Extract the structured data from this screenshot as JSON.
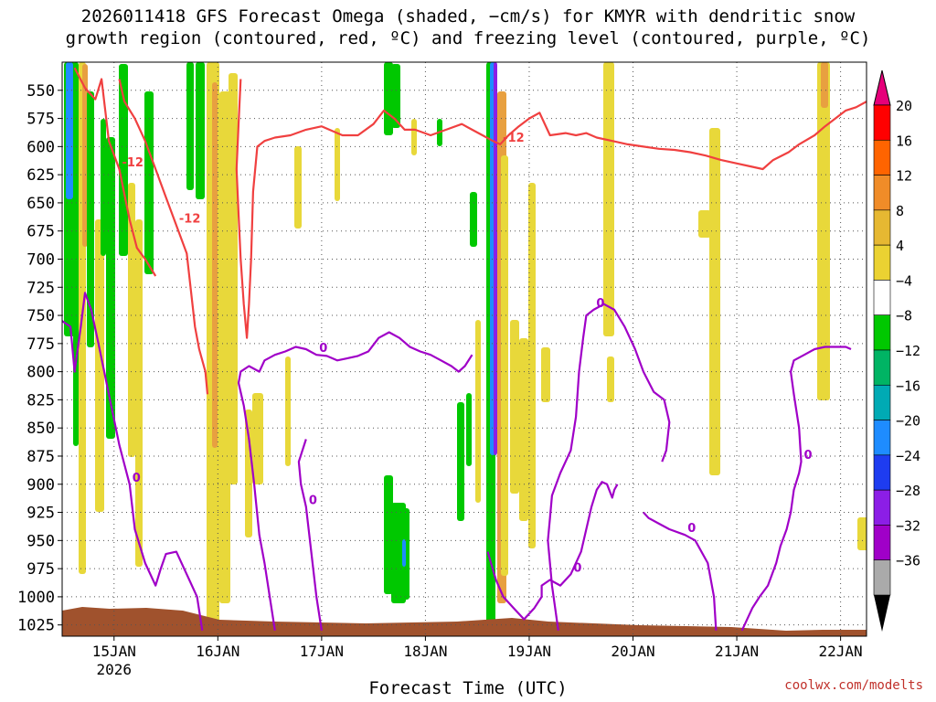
{
  "title": {
    "line1": "2026011418 GFS Forecast Omega (shaded, −cm/s) for KMYR with dendritic snow",
    "line2": "growth region (contoured, red, ºC) and freezing level (contoured, purple, ºC)"
  },
  "credit": "coolwx.com/modelts",
  "chart_data": {
    "type": "heatmap",
    "xlabel": "Forecast Time (UTC)",
    "ylabel": "",
    "x_ticks": [
      "15JAN",
      "16JAN",
      "17JAN",
      "18JAN",
      "19JAN",
      "20JAN",
      "21JAN",
      "22JAN"
    ],
    "x_tick_sub": {
      "15JAN": "2026"
    },
    "x_tick_days": [
      1,
      2,
      3,
      4,
      5,
      6,
      7,
      8
    ],
    "xlim_days": [
      0.5,
      8.25
    ],
    "y_ticks": [
      550,
      575,
      600,
      625,
      650,
      675,
      700,
      725,
      750,
      775,
      800,
      825,
      850,
      875,
      900,
      925,
      950,
      975,
      1000,
      1025
    ],
    "ylim": [
      1035,
      525
    ],
    "grid": true,
    "colorbar": {
      "labels": [
        "20",
        "16",
        "12",
        "8",
        "4",
        "−4",
        "−8",
        "−12",
        "−16",
        "−20",
        "−24",
        "−28",
        "−32",
        "−36"
      ],
      "colors": [
        "#ff0000",
        "#ff6400",
        "#f08c28",
        "#e6b832",
        "#ebd232",
        "#ffffff",
        "#00c800",
        "#00b464",
        "#00aab4",
        "#1e8cff",
        "#1e3cf0",
        "#8c1ee6",
        "#a000c8",
        "#aaaaaa"
      ],
      "top_color": "#e6007a",
      "bottom_color": "#000000"
    },
    "contours": [
      {
        "label": "-12",
        "color": "#f04040",
        "points": [
          [
            0.62,
            530
          ],
          [
            0.72,
            548
          ],
          [
            0.82,
            558
          ],
          [
            0.88,
            540
          ],
          [
            0.95,
            595
          ],
          [
            1.05,
            620
          ],
          [
            1.15,
            665
          ],
          [
            1.22,
            690
          ],
          [
            1.3,
            700
          ],
          [
            1.4,
            715
          ]
        ]
      },
      {
        "label": "-12",
        "color": "#f04040",
        "points": [
          [
            1.05,
            540
          ],
          [
            1.1,
            560
          ],
          [
            1.2,
            575
          ],
          [
            1.3,
            595
          ],
          [
            1.4,
            620
          ],
          [
            1.5,
            645
          ],
          [
            1.6,
            670
          ],
          [
            1.7,
            695
          ],
          [
            1.78,
            760
          ],
          [
            1.82,
            780
          ],
          [
            1.88,
            800
          ],
          [
            1.9,
            820
          ]
        ]
      },
      {
        "label": "-12",
        "color": "#f04040",
        "points": [
          [
            2.22,
            540
          ],
          [
            2.2,
            580
          ],
          [
            2.18,
            620
          ],
          [
            2.2,
            660
          ],
          [
            2.22,
            700
          ],
          [
            2.25,
            740
          ],
          [
            2.28,
            770
          ],
          [
            2.3,
            740
          ],
          [
            2.32,
            700
          ],
          [
            2.34,
            640
          ],
          [
            2.38,
            600
          ],
          [
            2.45,
            595
          ],
          [
            2.55,
            592
          ],
          [
            2.7,
            590
          ],
          [
            2.85,
            585
          ],
          [
            3.0,
            582
          ],
          [
            3.2,
            590
          ],
          [
            3.35,
            590
          ],
          [
            3.5,
            580
          ],
          [
            3.6,
            568
          ],
          [
            3.7,
            575
          ],
          [
            3.8,
            585
          ],
          [
            3.9,
            585
          ],
          [
            4.05,
            590
          ],
          [
            4.2,
            585
          ],
          [
            4.35,
            580
          ],
          [
            4.45,
            585
          ],
          [
            4.55,
            590
          ],
          [
            4.65,
            595
          ],
          [
            4.72,
            598
          ],
          [
            4.8,
            590
          ],
          [
            4.9,
            582
          ],
          [
            5.0,
            575
          ],
          [
            5.1,
            570
          ],
          [
            5.2,
            590
          ],
          [
            5.35,
            588
          ],
          [
            5.45,
            590
          ],
          [
            5.55,
            588
          ],
          [
            5.65,
            592
          ],
          [
            5.8,
            595
          ],
          [
            5.95,
            598
          ],
          [
            6.1,
            600
          ],
          [
            6.25,
            602
          ],
          [
            6.4,
            603
          ],
          [
            6.55,
            605
          ],
          [
            6.7,
            608
          ],
          [
            6.85,
            612
          ],
          [
            7.0,
            615
          ],
          [
            7.15,
            618
          ],
          [
            7.25,
            620
          ],
          [
            7.35,
            612
          ],
          [
            7.5,
            605
          ],
          [
            7.6,
            598
          ],
          [
            7.75,
            590
          ],
          [
            7.85,
            582
          ],
          [
            7.95,
            575
          ],
          [
            8.05,
            568
          ],
          [
            8.15,
            565
          ],
          [
            8.25,
            560
          ]
        ]
      },
      {
        "label": "0",
        "color": "#a000c8",
        "points": [
          [
            0.5,
            755
          ],
          [
            0.58,
            760
          ],
          [
            0.62,
            800
          ],
          [
            0.68,
            760
          ],
          [
            0.72,
            730
          ],
          [
            0.78,
            745
          ],
          [
            0.85,
            775
          ],
          [
            0.95,
            820
          ],
          [
            1.05,
            865
          ],
          [
            1.15,
            900
          ],
          [
            1.2,
            940
          ],
          [
            1.3,
            970
          ],
          [
            1.4,
            990
          ],
          [
            1.45,
            975
          ],
          [
            1.5,
            962
          ],
          [
            1.6,
            960
          ],
          [
            1.7,
            980
          ],
          [
            1.8,
            1000
          ],
          [
            1.85,
            1030
          ]
        ]
      },
      {
        "label": "0",
        "color": "#a000c8",
        "points": [
          [
            2.55,
            1030
          ],
          [
            2.5,
            1000
          ],
          [
            2.45,
            970
          ],
          [
            2.4,
            945
          ],
          [
            2.35,
            900
          ],
          [
            2.3,
            860
          ],
          [
            2.25,
            830
          ],
          [
            2.2,
            810
          ],
          [
            2.22,
            800
          ],
          [
            2.3,
            795
          ],
          [
            2.4,
            800
          ],
          [
            2.45,
            790
          ],
          [
            2.55,
            785
          ],
          [
            2.65,
            782
          ],
          [
            2.75,
            778
          ],
          [
            2.85,
            780
          ],
          [
            2.95,
            785
          ],
          [
            3.05,
            786
          ],
          [
            3.15,
            790
          ],
          [
            3.25,
            788
          ],
          [
            3.35,
            786
          ],
          [
            3.45,
            782
          ],
          [
            3.55,
            770
          ],
          [
            3.65,
            765
          ],
          [
            3.75,
            770
          ],
          [
            3.85,
            778
          ],
          [
            3.95,
            782
          ],
          [
            4.05,
            785
          ],
          [
            4.15,
            790
          ],
          [
            4.25,
            795
          ],
          [
            4.32,
            800
          ],
          [
            4.38,
            795
          ],
          [
            4.45,
            785
          ]
        ]
      },
      {
        "label": "0",
        "color": "#a000c8",
        "points": [
          [
            3.0,
            1030
          ],
          [
            2.95,
            1000
          ],
          [
            2.9,
            960
          ],
          [
            2.85,
            920
          ],
          [
            2.8,
            900
          ],
          [
            2.78,
            880
          ],
          [
            2.85,
            860
          ]
        ]
      },
      {
        "label": "0",
        "color": "#a000c8",
        "points": [
          [
            4.6,
            960
          ],
          [
            4.68,
            985
          ],
          [
            4.75,
            1000
          ],
          [
            4.85,
            1010
          ],
          [
            4.95,
            1020
          ],
          [
            5.05,
            1010
          ],
          [
            5.12,
            1000
          ],
          [
            5.12,
            990
          ],
          [
            5.2,
            985
          ],
          [
            5.3,
            990
          ],
          [
            5.4,
            980
          ],
          [
            5.5,
            960
          ],
          [
            5.55,
            940
          ],
          [
            5.6,
            920
          ],
          [
            5.65,
            905
          ],
          [
            5.7,
            898
          ],
          [
            5.75,
            900
          ],
          [
            5.8,
            912
          ],
          [
            5.82,
            905
          ],
          [
            5.85,
            900
          ]
        ]
      },
      {
        "label": "0",
        "color": "#a000c8",
        "points": [
          [
            5.28,
            1030
          ],
          [
            5.22,
            990
          ],
          [
            5.18,
            950
          ],
          [
            5.2,
            930
          ],
          [
            5.22,
            910
          ],
          [
            5.3,
            890
          ],
          [
            5.4,
            870
          ],
          [
            5.45,
            840
          ],
          [
            5.48,
            800
          ],
          [
            5.52,
            770
          ],
          [
            5.55,
            750
          ],
          [
            5.62,
            745
          ],
          [
            5.72,
            740
          ],
          [
            5.82,
            745
          ],
          [
            5.92,
            760
          ],
          [
            6.02,
            780
          ],
          [
            6.1,
            800
          ],
          [
            6.2,
            818
          ],
          [
            6.3,
            825
          ],
          [
            6.35,
            845
          ],
          [
            6.32,
            870
          ],
          [
            6.28,
            880
          ]
        ]
      },
      {
        "label": "0",
        "color": "#a000c8",
        "points": [
          [
            6.1,
            925
          ],
          [
            6.15,
            930
          ],
          [
            6.25,
            935
          ],
          [
            6.35,
            940
          ],
          [
            6.5,
            945
          ],
          [
            6.6,
            950
          ],
          [
            6.72,
            970
          ],
          [
            6.78,
            1000
          ],
          [
            6.8,
            1030
          ]
        ]
      },
      {
        "label": "0",
        "color": "#a000c8",
        "points": [
          [
            7.05,
            1030
          ],
          [
            7.15,
            1010
          ],
          [
            7.22,
            1000
          ],
          [
            7.3,
            990
          ],
          [
            7.38,
            970
          ],
          [
            7.42,
            955
          ],
          [
            7.48,
            940
          ],
          [
            7.52,
            925
          ],
          [
            7.55,
            905
          ],
          [
            7.6,
            890
          ],
          [
            7.62,
            880
          ],
          [
            7.6,
            850
          ],
          [
            7.55,
            820
          ],
          [
            7.52,
            800
          ],
          [
            7.55,
            790
          ],
          [
            7.65,
            785
          ],
          [
            7.75,
            780
          ],
          [
            7.85,
            778
          ],
          [
            7.95,
            778
          ],
          [
            8.05,
            778
          ],
          [
            8.1,
            780
          ]
        ]
      }
    ],
    "bands_palette_keys": [
      "yellow",
      "green",
      "orange",
      "blue",
      "purple",
      "ground"
    ]
  }
}
